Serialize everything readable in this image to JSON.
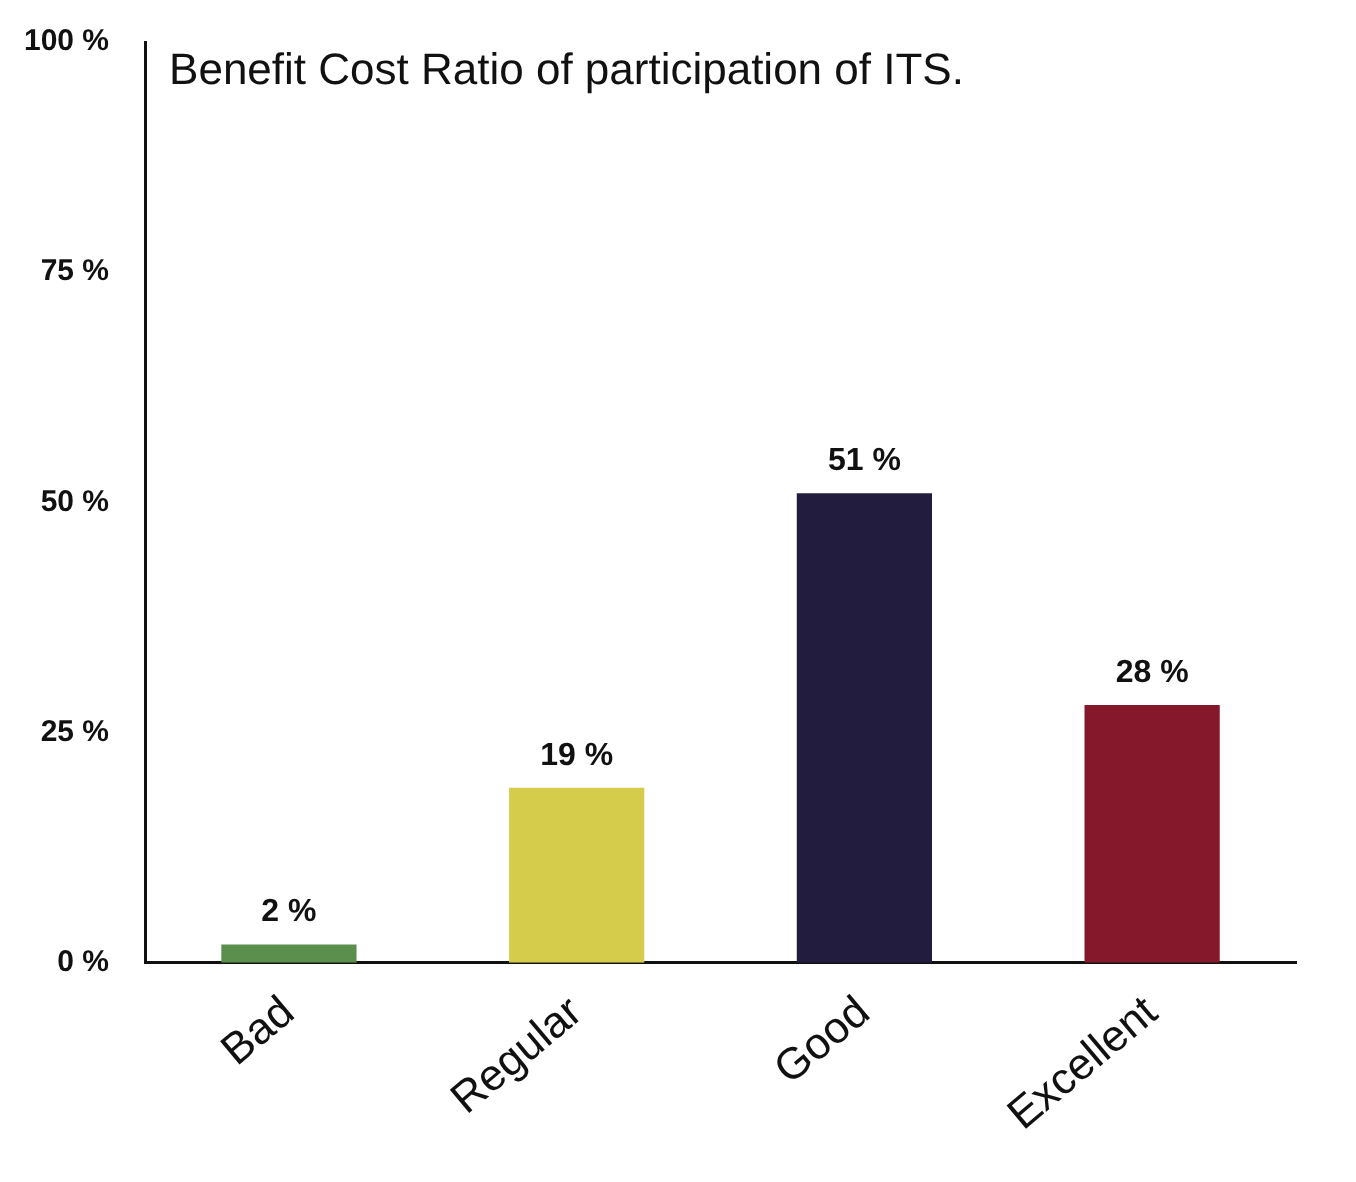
{
  "chart_data": {
    "type": "bar",
    "title": "Benefit Cost Ratio of participation of ITS.",
    "categories": [
      "Bad",
      "Regular",
      "Good",
      "Excellent"
    ],
    "values": [
      2,
      19,
      51,
      28
    ],
    "colors": [
      "#5b8f4e",
      "#d5cc4c",
      "#221c3f",
      "#85182b"
    ],
    "value_labels": [
      "2 %",
      "19 %",
      "51 %",
      "28 %"
    ],
    "ylim": [
      0,
      100
    ],
    "yticks": [
      {
        "value": 0,
        "label": "0 %"
      },
      {
        "value": 25,
        "label": "25 %"
      },
      {
        "value": 50,
        "label": "50 %"
      },
      {
        "value": 75,
        "label": "75 %"
      },
      {
        "value": 100,
        "label": "100 %"
      }
    ],
    "grid": false,
    "legend": false
  }
}
